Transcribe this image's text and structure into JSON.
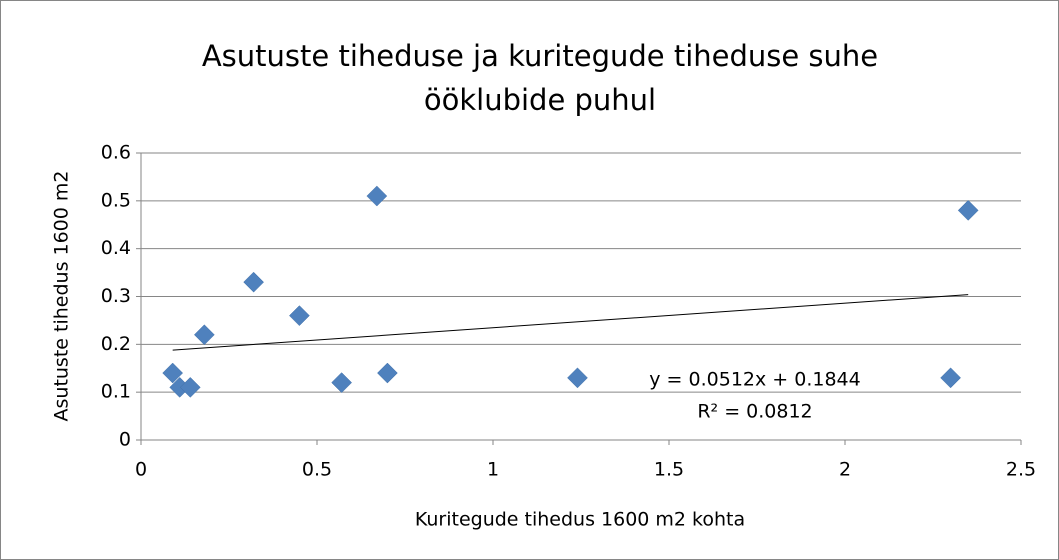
{
  "chart_data": {
    "type": "scatter",
    "title": [
      "Asutuste tiheduse ja kuritegude tiheduse suhe",
      "ööklubide puhul"
    ],
    "xlabel": "Kuritegude tihedus 1600 m2 kohta",
    "ylabel": "Asutuste tihedus 1600 m2",
    "series": [
      {
        "name": "Asutuste tihedus 1600 m2",
        "color": "#4f81bd",
        "x": [
          0.09,
          0.11,
          0.14,
          0.18,
          0.32,
          0.45,
          0.57,
          0.67,
          0.7,
          1.24,
          2.3,
          2.35
        ],
        "values": [
          0.14,
          0.11,
          0.11,
          0.22,
          0.33,
          0.26,
          0.12,
          0.51,
          0.14,
          0.13,
          0.13,
          0.48
        ]
      }
    ],
    "trendline": {
      "color": "#000000",
      "x": [
        0.09,
        2.35
      ],
      "values": [
        0.188,
        0.304
      ]
    },
    "annotations": [
      "y = 0.0512x + 0.1844",
      "R² = 0.0812"
    ],
    "xlim": [
      0,
      2.5
    ],
    "xticks": [
      0,
      0.5,
      1,
      1.5,
      2,
      2.5
    ],
    "ylim": [
      0,
      0.6
    ],
    "yticks": [
      0,
      0.1,
      0.2,
      0.3,
      0.4,
      0.5,
      0.6
    ],
    "grid": true
  }
}
